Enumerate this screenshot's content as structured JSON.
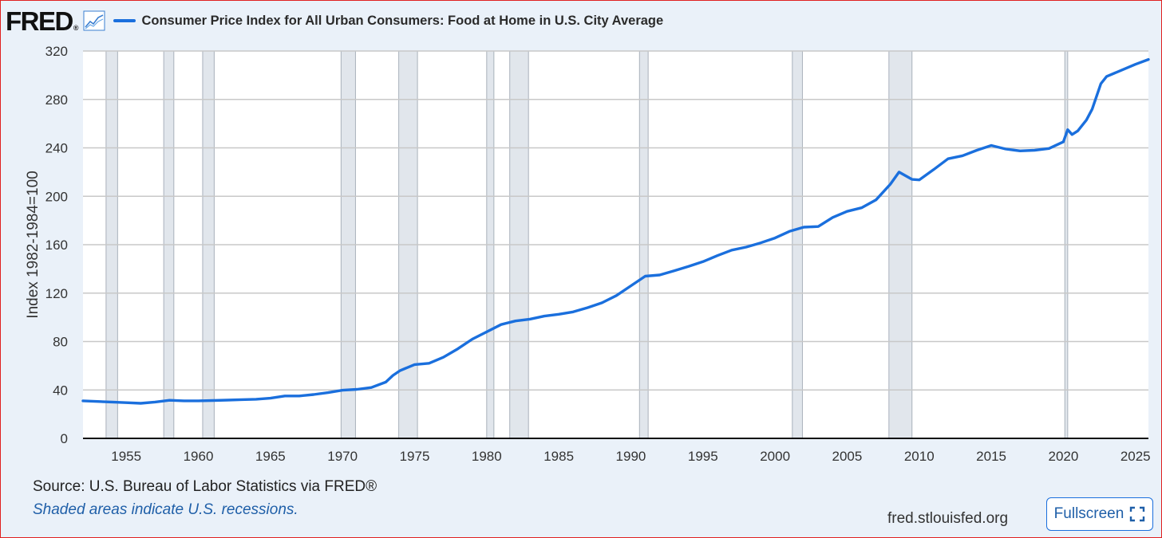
{
  "header": {
    "logo_text": "FRED",
    "logo_reg": "®"
  },
  "colors": {
    "line": "#1a6fdd",
    "recession": "#e1e6ec",
    "recession_edge": "#a9b1bb",
    "grid": "#c8c8c8",
    "plot_bg": "#ffffff"
  },
  "chart_data": {
    "type": "line",
    "title": "Consumer Price Index for All Urban Consumers: Food at Home in U.S. City Average",
    "xlabel": "",
    "ylabel": "Index 1982-1984=100",
    "xlim": [
      1952.0,
      2025.9
    ],
    "ylim": [
      0,
      320
    ],
    "y_ticks": [
      0,
      40,
      80,
      120,
      160,
      200,
      240,
      280,
      320
    ],
    "x_ticks": [
      1955,
      1960,
      1965,
      1970,
      1975,
      1980,
      1985,
      1990,
      1995,
      2000,
      2005,
      2010,
      2015,
      2020,
      2025
    ],
    "recessions": [
      [
        1953.6,
        1954.4
      ],
      [
        1957.6,
        1958.3
      ],
      [
        1960.3,
        1961.1
      ],
      [
        1969.9,
        1970.9
      ],
      [
        1973.9,
        1975.2
      ],
      [
        1980.0,
        1980.5
      ],
      [
        1981.6,
        1982.9
      ],
      [
        1990.6,
        1991.2
      ],
      [
        2001.2,
        2001.9
      ],
      [
        2007.9,
        2009.5
      ],
      [
        2020.1,
        2020.3
      ]
    ],
    "series": [
      {
        "name": "Consumer Price Index for All Urban Consumers: Food at Home in U.S. City Average",
        "x": [
          1952.0,
          1953.0,
          1954.0,
          1955.0,
          1956.0,
          1957.0,
          1958.0,
          1959.0,
          1960.0,
          1961.0,
          1962.0,
          1963.0,
          1964.0,
          1965.0,
          1966.0,
          1967.0,
          1968.0,
          1969.0,
          1970.0,
          1971.0,
          1972.0,
          1973.0,
          1973.5,
          1974.0,
          1975.0,
          1976.0,
          1977.0,
          1978.0,
          1979.0,
          1980.0,
          1981.0,
          1982.0,
          1983.0,
          1984.0,
          1985.0,
          1986.0,
          1987.0,
          1988.0,
          1989.0,
          1990.0,
          1991.0,
          1992.0,
          1993.0,
          1994.0,
          1995.0,
          1996.0,
          1997.0,
          1998.0,
          1999.0,
          2000.0,
          2001.0,
          2002.0,
          2003.0,
          2004.0,
          2005.0,
          2006.0,
          2007.0,
          2008.0,
          2008.6,
          2009.5,
          2010.0,
          2011.0,
          2012.0,
          2013.0,
          2014.0,
          2015.0,
          2016.0,
          2017.0,
          2018.0,
          2019.0,
          2020.0,
          2020.3,
          2020.6,
          2021.0,
          2021.6,
          2022.0,
          2022.6,
          2023.0,
          2024.0,
          2025.0,
          2025.9
        ],
        "values": [
          31,
          30.5,
          30,
          29.5,
          29,
          30,
          31.5,
          31,
          31,
          31.3,
          31.6,
          32,
          32.3,
          33.2,
          35,
          35,
          36.2,
          37.8,
          39.8,
          40.5,
          42,
          46.5,
          52,
          56,
          61,
          62,
          67,
          74,
          82,
          88,
          94,
          97,
          98.5,
          101,
          102.5,
          104.5,
          108,
          112,
          118,
          126,
          134,
          135,
          138.5,
          142,
          146,
          151,
          155.5,
          158,
          161.5,
          165.5,
          171,
          174.5,
          175,
          182.5,
          187.5,
          190.5,
          197,
          210,
          220,
          214,
          213.5,
          222,
          231,
          233.5,
          238,
          242,
          239,
          237.5,
          238,
          239.5,
          245,
          255,
          251,
          254,
          263,
          272,
          293,
          299,
          304,
          309,
          313
        ]
      }
    ]
  },
  "footer": {
    "source": "Source: U.S. Bureau of Labor Statistics via FRED®",
    "note": "Shaded areas indicate U.S. recessions.",
    "site": "fred.stlouisfed.org",
    "fullscreen_label": "Fullscreen"
  }
}
